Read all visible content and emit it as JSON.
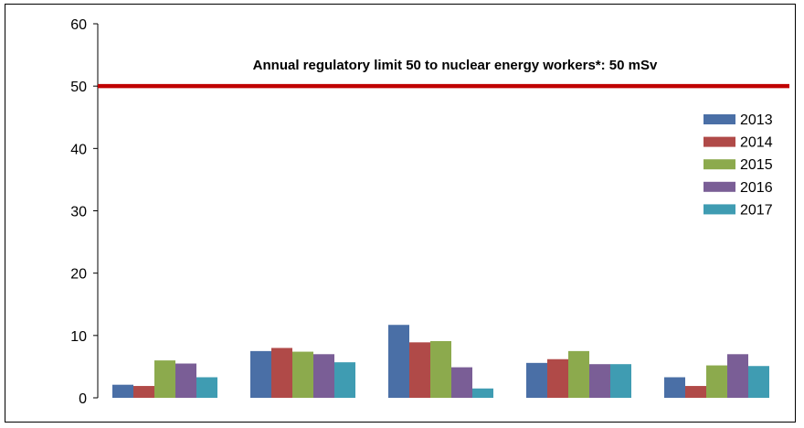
{
  "chart_data": {
    "type": "bar",
    "categories": [
      "",
      "",
      "",
      "",
      ""
    ],
    "series": [
      {
        "name": "2013",
        "color": "#4a6fa6",
        "values": [
          2.1,
          7.5,
          11.7,
          5.6,
          3.3
        ]
      },
      {
        "name": "2014",
        "color": "#b04a48",
        "values": [
          1.9,
          8.0,
          8.9,
          6.2,
          1.9
        ]
      },
      {
        "name": "2015",
        "color": "#8caa4d",
        "values": [
          6.0,
          7.4,
          9.1,
          7.5,
          5.2
        ]
      },
      {
        "name": "2016",
        "color": "#7a5e96",
        "values": [
          5.5,
          7.0,
          4.9,
          5.4,
          7.0
        ]
      },
      {
        "name": "2017",
        "color": "#3f9cb2",
        "values": [
          3.3,
          5.7,
          1.5,
          5.4,
          5.1
        ]
      }
    ],
    "ylim": [
      0,
      60
    ],
    "yticks": [
      "0",
      "10",
      "20",
      "30",
      "40",
      "50",
      "60"
    ],
    "reference_line": {
      "value": 50,
      "color": "#c00000",
      "label": "Annual regulatory limit 50 to nuclear energy workers*: 50 mSv"
    },
    "legend_position": "right",
    "grid": false
  }
}
